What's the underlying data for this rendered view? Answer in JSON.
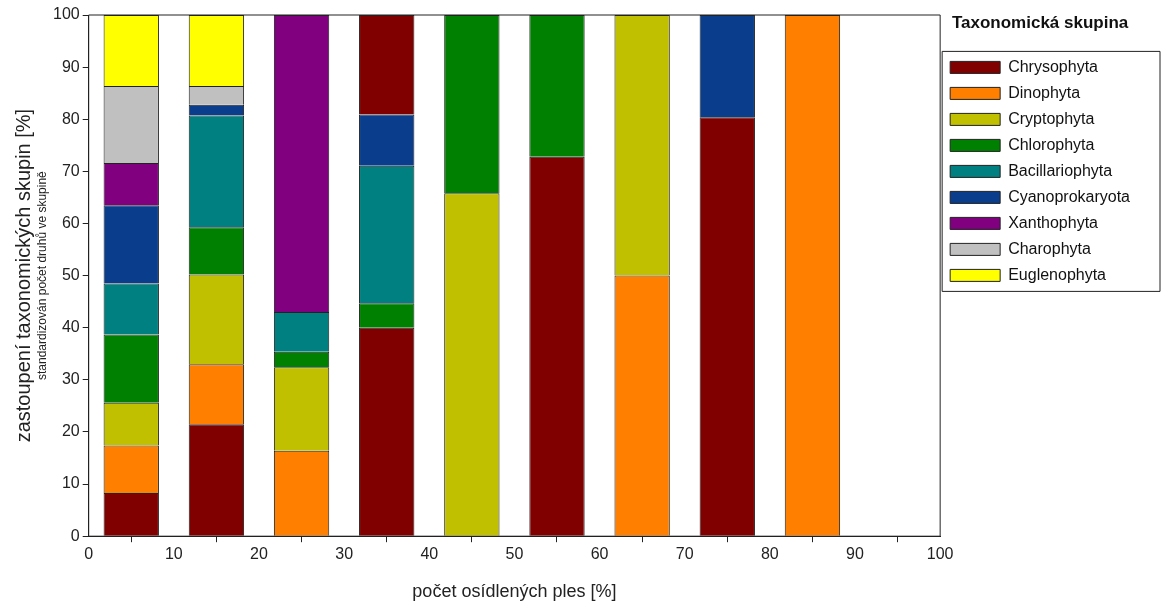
{
  "chart_data": {
    "type": "bar",
    "stacked": true,
    "xlabel": "počet osídlených ples [%]",
    "ylabel": "zastoupení taxonomických skupin [%]",
    "annotations": [
      "standardizován počet druhů ve skupině"
    ],
    "legend_title": "Taxonomická skupina",
    "x": [
      5,
      15,
      25,
      35,
      45,
      55,
      65,
      75,
      85
    ],
    "xlim": [
      0,
      100
    ],
    "xticks": [
      0,
      10,
      20,
      30,
      40,
      50,
      60,
      70,
      80,
      90,
      100
    ],
    "ylim": [
      0,
      100
    ],
    "yticks": [
      0,
      10,
      20,
      30,
      40,
      50,
      60,
      70,
      80,
      90,
      100
    ],
    "grid": false,
    "legend": "right",
    "series": [
      {
        "name": "Chrysophyta",
        "color": "#800000",
        "values": [
          8.3,
          21.5,
          null,
          40,
          null,
          72.8,
          null,
          80.4,
          null
        ]
      },
      {
        "name": "Dinophyta",
        "color": "#ff8000",
        "values": [
          9.1,
          11.5,
          16.4,
          null,
          null,
          null,
          50,
          null,
          100
        ]
      },
      {
        "name": "Cryptophyta",
        "color": "#c0c000",
        "values": [
          8.2,
          17.2,
          16,
          null,
          65.8,
          null,
          50,
          null,
          null
        ]
      },
      {
        "name": "Chlorophyta",
        "color": "#008000",
        "values": [
          13.1,
          9.1,
          3,
          4.7,
          34.2,
          27.2,
          null,
          null,
          null
        ]
      },
      {
        "name": "Bacillariophyta",
        "color": "#008080",
        "values": [
          9.8,
          21.4,
          7.6,
          26.4,
          null,
          null,
          null,
          null,
          null
        ]
      },
      {
        "name": "Cyanoprokaryota",
        "color": "#0a3d8c",
        "values": [
          15,
          2.1,
          null,
          9.8,
          null,
          null,
          null,
          19.6,
          null
        ]
      },
      {
        "name": "Xanthophyta",
        "color": "#800080",
        "values": [
          8.1,
          null,
          57,
          null,
          null,
          null,
          null,
          null,
          null
        ]
      },
      {
        "name": "Charophyta",
        "color": "#c0c0c0",
        "values": [
          14.8,
          3.6,
          null,
          null,
          null,
          null,
          null,
          null,
          null
        ]
      },
      {
        "name": "Euglenophyta",
        "color": "#ffff00",
        "values": [
          13.6,
          13.6,
          null,
          null,
          null,
          null,
          null,
          null,
          null
        ]
      },
      {
        "color": "#800000",
        "values": [
          null,
          null,
          null,
          19.1,
          null,
          null,
          null,
          null,
          null
        ]
      }
    ]
  }
}
